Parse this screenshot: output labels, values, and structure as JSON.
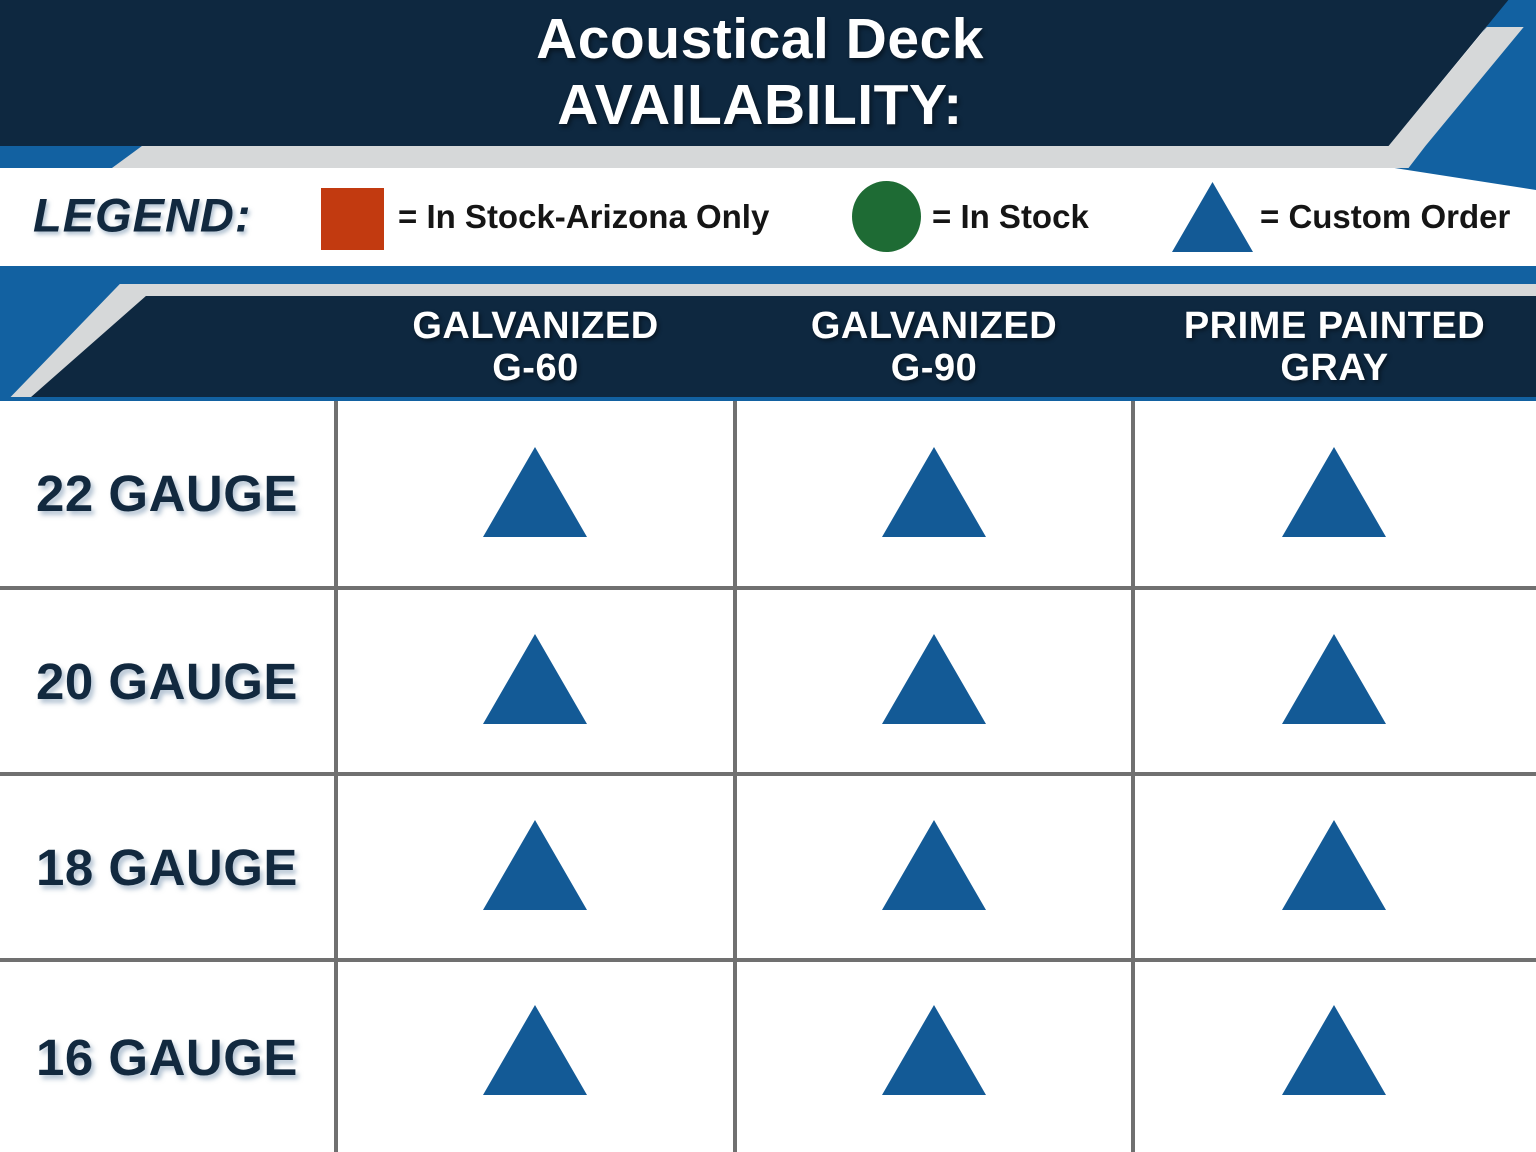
{
  "title": {
    "line1": "Acoustical Deck",
    "line2": "AVAILABILITY:"
  },
  "legend": {
    "label": "LEGEND:",
    "items": [
      {
        "symbol": "red-square",
        "color": "#C23A10",
        "text": "= In Stock-Arizona Only"
      },
      {
        "symbol": "green-circle",
        "color": "#1E6B34",
        "text": "= In Stock"
      },
      {
        "symbol": "blue-triangle",
        "color": "#135A96",
        "text": "= Custom Order"
      }
    ]
  },
  "table": {
    "columns": [
      {
        "line1": "GALVANIZED",
        "line2": "G-60"
      },
      {
        "line1": "GALVANIZED",
        "line2": "G-90"
      },
      {
        "line1": "PRIME PAINTED",
        "line2": "GRAY"
      }
    ],
    "rows": [
      {
        "label": "22 GAUGE",
        "availability": [
          "Custom Order",
          "Custom Order",
          "Custom Order"
        ]
      },
      {
        "label": "20 GAUGE",
        "availability": [
          "Custom Order",
          "Custom Order",
          "Custom Order"
        ]
      },
      {
        "label": "18 GAUGE",
        "availability": [
          "Custom Order",
          "Custom Order",
          "Custom Order"
        ]
      },
      {
        "label": "16 GAUGE",
        "availability": [
          "Custom Order",
          "Custom Order",
          "Custom Order"
        ]
      }
    ]
  },
  "chart_data": {
    "type": "table",
    "title": "Acoustical Deck AVAILABILITY:",
    "columns": [
      "GALVANIZED G-60",
      "GALVANIZED G-90",
      "PRIME PAINTED GRAY"
    ],
    "rows": [
      "22 GAUGE",
      "20 GAUGE",
      "18 GAUGE",
      "16 GAUGE"
    ],
    "values": [
      [
        "Custom Order",
        "Custom Order",
        "Custom Order"
      ],
      [
        "Custom Order",
        "Custom Order",
        "Custom Order"
      ],
      [
        "Custom Order",
        "Custom Order",
        "Custom Order"
      ],
      [
        "Custom Order",
        "Custom Order",
        "Custom Order"
      ]
    ],
    "legend_mapping": {
      "In Stock-Arizona Only": "red square",
      "In Stock": "green circle",
      "Custom Order": "blue triangle"
    }
  },
  "colors": {
    "navy": "#0E2840",
    "accent_blue": "#1261A1",
    "stripe_gray": "#D6D8D9",
    "grid_gray": "#707070",
    "legend_red": "#C23A10",
    "legend_green": "#1E6B34",
    "triangle_blue": "#135A96",
    "navy_text": "#12293F"
  }
}
